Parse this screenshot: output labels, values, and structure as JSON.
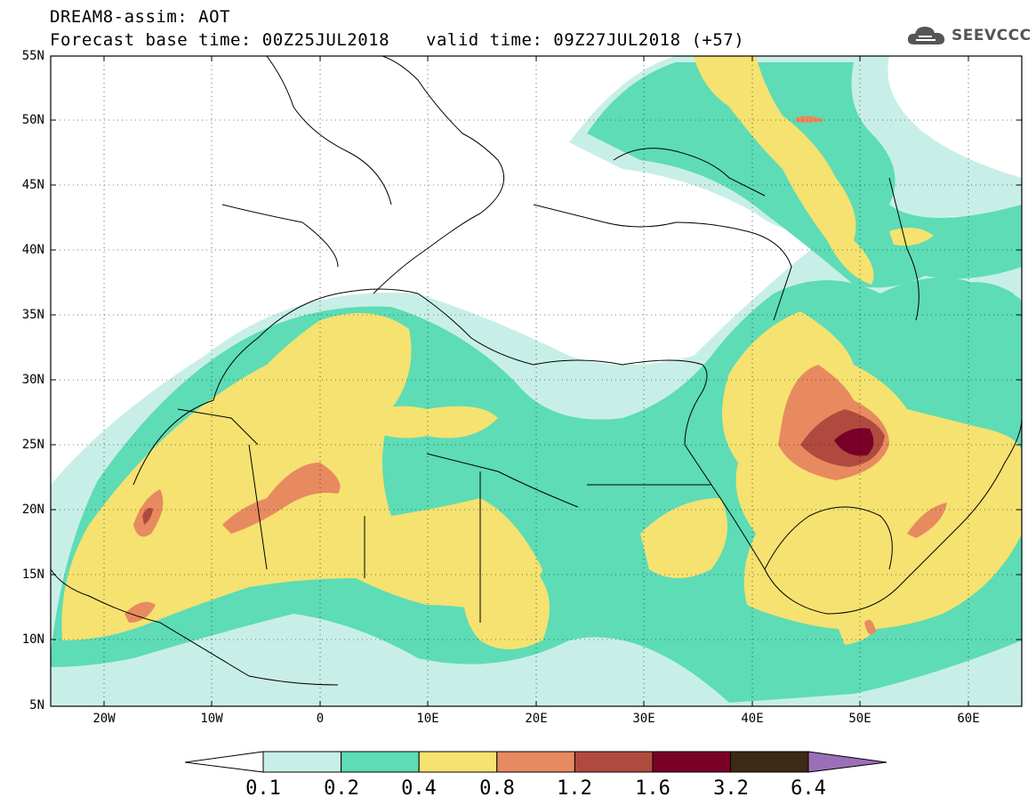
{
  "header": {
    "line1": "DREAM8-assim: AOT",
    "line2": "Forecast base time: 00Z25JUL2018",
    "line3": "valid time: 09Z27JUL2018 (+57)"
  },
  "logo": {
    "text": "SEEVCCC",
    "icon": "cloud-icon"
  },
  "map": {
    "lat_labels": [
      "55N",
      "50N",
      "45N",
      "40N",
      "35N",
      "30N",
      "25N",
      "20N",
      "15N",
      "10N",
      "5N"
    ],
    "lon_labels": [
      "20W",
      "10W",
      "0",
      "10E",
      "20E",
      "30E",
      "40E",
      "50E",
      "60E"
    ]
  },
  "colorbar": {
    "labels": [
      "0.1",
      "0.2",
      "0.4",
      "0.8",
      "1.2",
      "1.6",
      "3.2",
      "6.4"
    ],
    "colors": {
      "below": "#ffffff",
      "c1": "#c8efe7",
      "c2": "#5ddcb6",
      "c3": "#f5e270",
      "c4": "#e88a60",
      "c5": "#b04a3e",
      "c6": "#7a0028",
      "c7": "#3d2a14",
      "above": "#9b6fb8"
    }
  }
}
